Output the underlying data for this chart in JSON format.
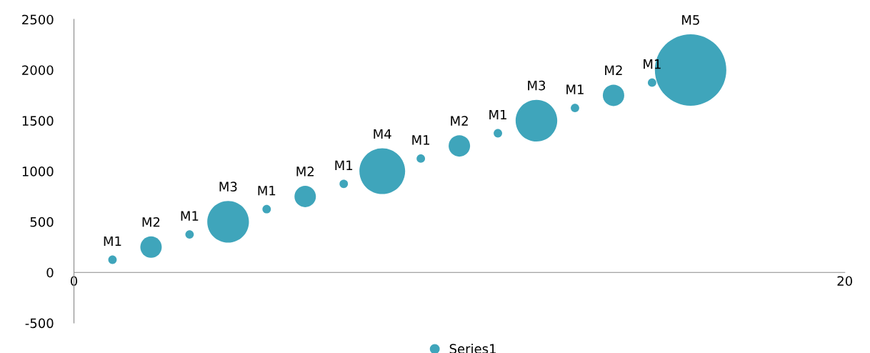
{
  "chart_data": {
    "type": "bubble",
    "x": [
      1,
      2,
      3,
      4,
      5,
      6,
      7,
      8,
      9,
      10,
      11,
      12,
      13,
      14,
      15,
      16
    ],
    "series": [
      {
        "name": "Series1",
        "color": "#3fa5bb",
        "values": [
          125,
          250,
          375,
          500,
          625,
          750,
          875,
          1000,
          1125,
          1250,
          1375,
          1500,
          1625,
          1750,
          1875,
          2000
        ],
        "sizes": [
          0.014,
          0.09,
          0.014,
          0.34,
          0.014,
          0.09,
          0.014,
          0.41,
          0.014,
          0.09,
          0.014,
          0.34,
          0.014,
          0.09,
          0.014,
          1
        ],
        "value_labels": [
          "M1",
          "M2",
          "M1",
          "M3",
          "M1",
          "M2",
          "M1",
          "M4",
          "M1",
          "M2",
          "M1",
          "M3",
          "M1",
          "M2",
          "M1",
          "M5"
        ]
      }
    ],
    "xlim": [
      0,
      20
    ],
    "xticks": [
      0,
      20
    ],
    "ylim": [
      -500,
      2500
    ],
    "yticks": [
      -500,
      0,
      500,
      1000,
      1500,
      2000,
      2500
    ],
    "grid": false,
    "legend": "bottom"
  }
}
